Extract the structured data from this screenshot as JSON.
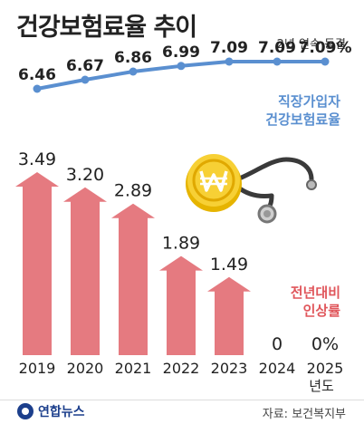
{
  "title": "건강보험료율 추이",
  "note": "2년 연속 동결",
  "series_label_rate": [
    "직장가입자",
    "건강보험료율"
  ],
  "series_label_increase": [
    "전년대비",
    "인상률"
  ],
  "year_unit": "년도",
  "logo_text": "연합뉴스",
  "source": "자료: 보건복지부",
  "colors": {
    "line": "#5a8fd0",
    "bar": "#e57a80",
    "text": "#222222"
  },
  "chart_data": [
    {
      "type": "line",
      "x": [
        "2019",
        "2020",
        "2021",
        "2022",
        "2023",
        "2024",
        "2025"
      ],
      "series": [
        {
          "values": [
            6.46,
            6.67,
            6.86,
            6.99,
            7.09,
            7.09,
            7.09
          ]
        }
      ],
      "labels": [
        "6.46",
        "6.67",
        "6.86",
        "6.99",
        "7.09",
        "7.09",
        "7.09%"
      ]
    },
    {
      "type": "bar",
      "categories": [
        "2019",
        "2020",
        "2021",
        "2022",
        "2023",
        "2024",
        "2025"
      ],
      "values": [
        3.49,
        3.2,
        2.89,
        1.89,
        1.49,
        0,
        0
      ],
      "labels": [
        "3.49",
        "3.20",
        "2.89",
        "1.89",
        "1.49",
        "0",
        "0%"
      ]
    }
  ]
}
